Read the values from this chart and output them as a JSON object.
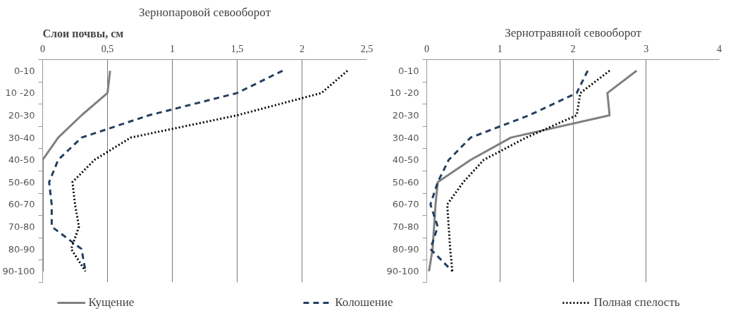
{
  "chart_data": [
    {
      "type": "line",
      "orientation": "horizontal",
      "title": "Зернопаровой севооборот",
      "ylabel": "Слои почвы, см",
      "categories": [
        "0-10",
        "10 -20",
        "20-30",
        "30-40",
        "40-50",
        "50-60",
        "60-70",
        "70-80",
        "80-90",
        "90-100"
      ],
      "xlim": [
        0,
        2.5
      ],
      "xticks": [
        0,
        {
          "value": 0.5,
          "label": "0,5"
        },
        1,
        {
          "value": 1.5,
          "label": "1,5"
        },
        2,
        {
          "value": 2.5,
          "label": "2,5"
        }
      ],
      "grid": "x",
      "legend": "bottom",
      "series": [
        {
          "name": "Кущение",
          "color": "#808080",
          "line_style": "solid",
          "values": [
            0.52,
            0.5,
            0.3,
            0.12,
            0,
            0,
            0,
            0,
            0,
            0
          ]
        },
        {
          "name": "Колошение",
          "color": "#243f60",
          "line_style": "dashed",
          "values": [
            1.85,
            1.5,
            0.82,
            0.3,
            0.12,
            0.05,
            0.07,
            0.07,
            0.3,
            0.33
          ]
        },
        {
          "name": "Полная спелость",
          "color": "#000000",
          "line_style": "dotted",
          "values": [
            2.35,
            2.15,
            1.5,
            0.68,
            0.4,
            0.23,
            0.25,
            0.28,
            0.22,
            0.33
          ]
        }
      ]
    },
    {
      "type": "line",
      "orientation": "horizontal",
      "title": "Зернотравяной севооборот",
      "categories": [
        "0-10",
        "10 -20",
        "20-30",
        "30-40",
        "40-50",
        "50-60",
        "60-70",
        "70-80",
        "80-90",
        "90-100"
      ],
      "xlim": [
        0,
        4
      ],
      "xticks": [
        0,
        1,
        2,
        3,
        4
      ],
      "grid": "x",
      "series": [
        {
          "color": "#808080",
          "line_style": "solid",
          "values": [
            2.87,
            2.47,
            2.5,
            1.15,
            0.6,
            0.15,
            0.12,
            0.1,
            0.08,
            0.03
          ]
        },
        {
          "color": "#243f60",
          "line_style": "dashed",
          "values": [
            2.2,
            2.05,
            1.4,
            0.6,
            0.3,
            0.15,
            0.05,
            0.15,
            0.05,
            0.35
          ]
        },
        {
          "color": "#000000",
          "line_style": "dotted",
          "values": [
            2.5,
            2.1,
            2.05,
            1.36,
            0.78,
            0.5,
            0.28,
            0.3,
            0.32,
            0.35
          ]
        }
      ]
    }
  ]
}
